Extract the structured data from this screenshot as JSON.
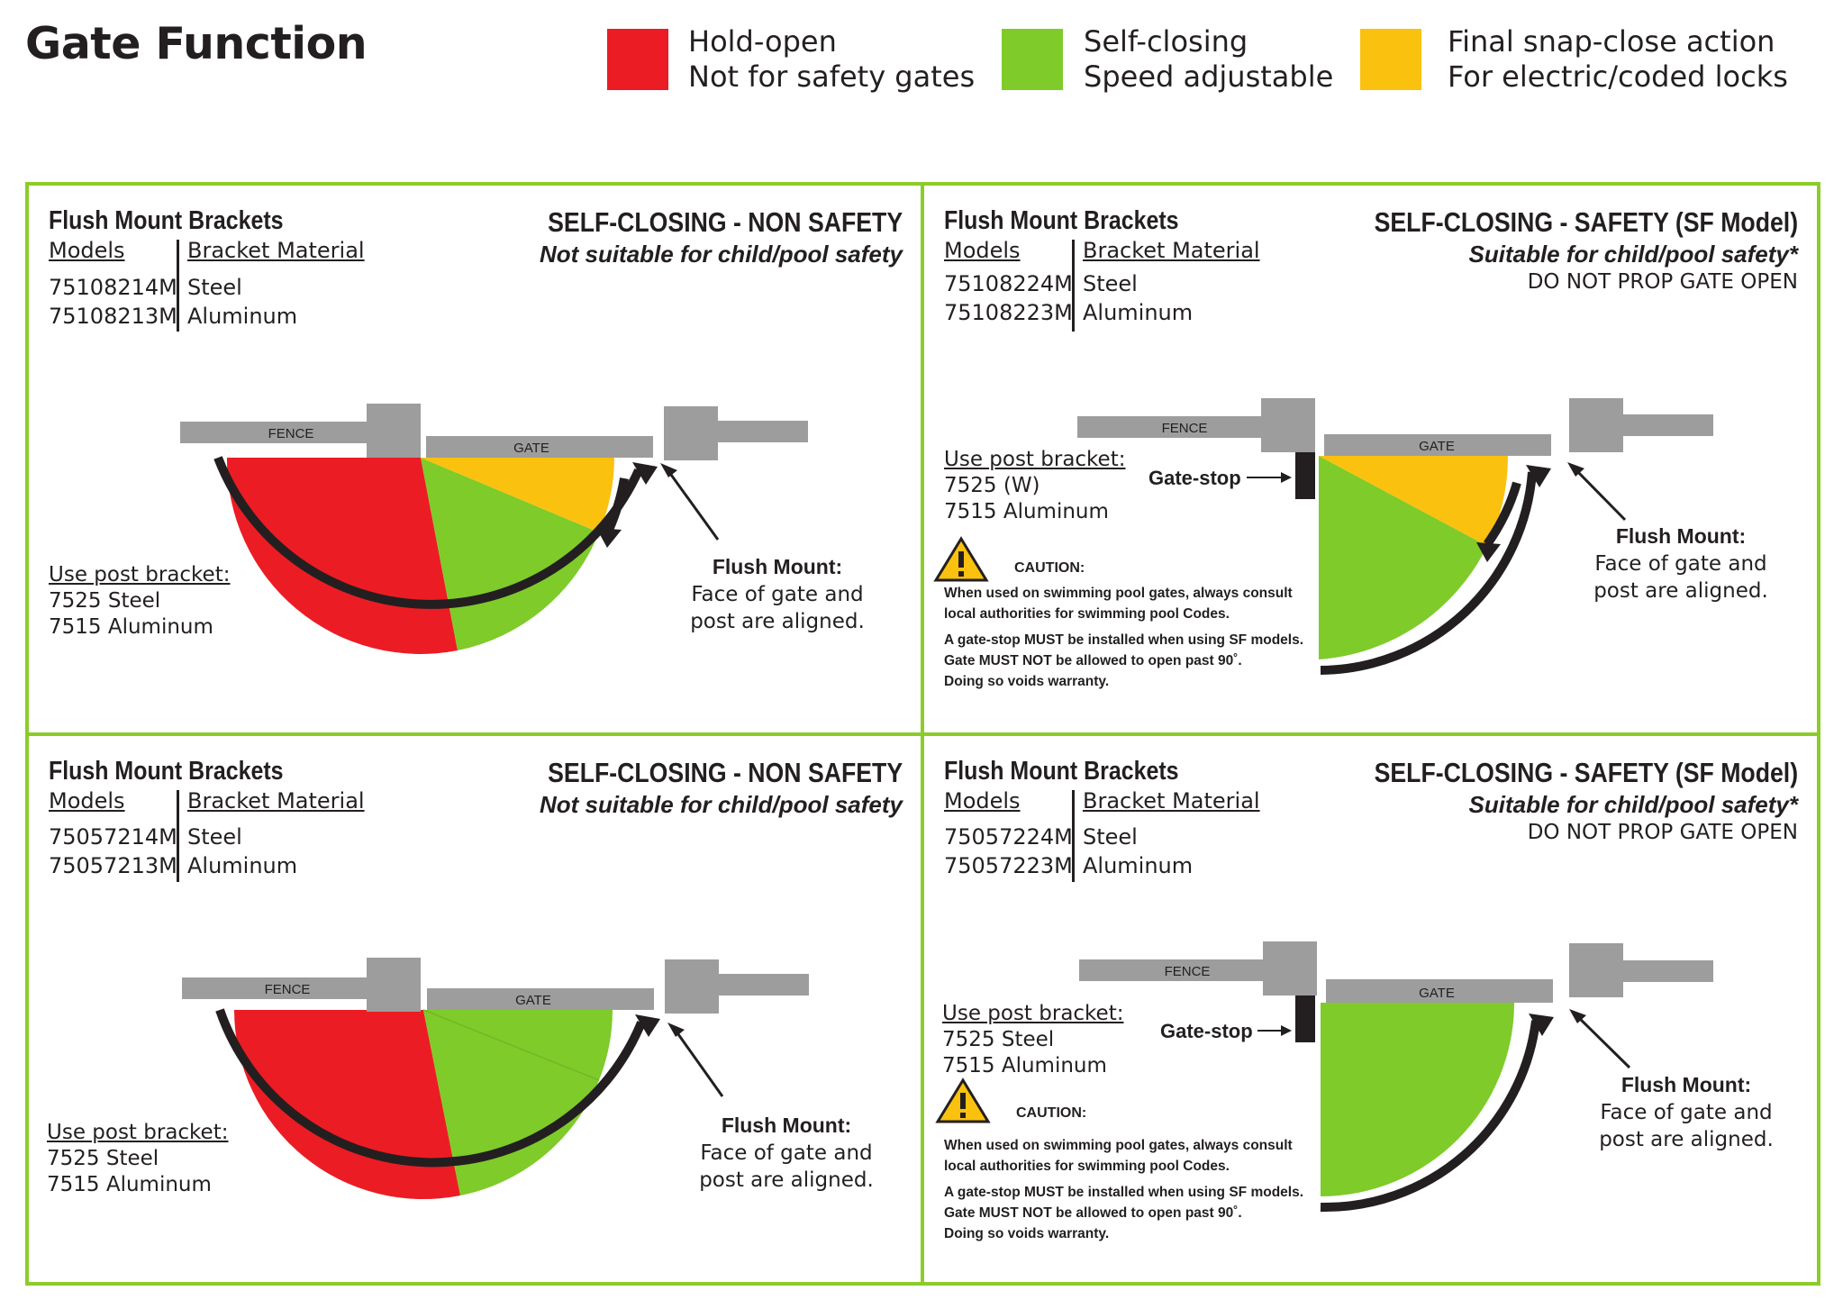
{
  "page_title": "Gate Function",
  "legend": [
    {
      "color": "#ec1c24",
      "line1": "Hold-open",
      "line2": "Not for safety gates"
    },
    {
      "color": "#7ecb2a",
      "line1": "Self-closing",
      "line2": "Speed adjustable"
    },
    {
      "color": "#fbc10f",
      "line1": "Final snap-close action",
      "line2": "For electric/coded locks"
    }
  ],
  "colors": {
    "frame": "#8ccc2a",
    "red": "#ec1c24",
    "green": "#7ecb2a",
    "yellow": "#fbc10f",
    "gray": "#9d9d9d",
    "black": "#231f20"
  },
  "panels": [
    {
      "heading": "Flush Mount Brackets",
      "type_title": "SELF-CLOSING - NON SAFETY",
      "type_subtitle": "Not suitable for child/pool safety",
      "note": "",
      "col_models": "Models",
      "col_material": "Bracket Material",
      "rows": [
        {
          "model": "75108214M",
          "material": "Steel"
        },
        {
          "model": "75108213M",
          "material": "Aluminum"
        }
      ],
      "post_bracket_label": "Use post bracket:",
      "post_bracket_1": "7525 Steel",
      "post_bracket_2": "7515 Aluminum",
      "fence_label": "FENCE",
      "gate_label": "GATE",
      "flush_title": "Flush Mount:",
      "flush_line1": "Face of gate and",
      "flush_line2": "post are aligned."
    },
    {
      "heading": "Flush Mount Brackets",
      "type_title": "SELF-CLOSING - SAFETY (SF Model)",
      "type_subtitle": "Suitable for child/pool safety*",
      "note": "DO NOT PROP GATE OPEN",
      "col_models": "Models",
      "col_material": "Bracket Material",
      "rows": [
        {
          "model": "75108224M",
          "material": "Steel"
        },
        {
          "model": "75108223M",
          "material": "Aluminum"
        }
      ],
      "post_bracket_label": "Use post bracket:",
      "post_bracket_1": "7525 (W)",
      "post_bracket_2": "7515 Aluminum",
      "fence_label": "FENCE",
      "gate_label": "GATE",
      "gate_stop_label": "Gate-stop",
      "caution_title": "CAUTION:",
      "caution_1": "When used on swimming pool gates, always consult",
      "caution_2": "local authorities for swimming pool Codes.",
      "caution_3": "A gate-stop MUST be installed when using SF models.",
      "caution_4": "Gate MUST NOT be allowed to open past 90˚.",
      "caution_5": "Doing so voids warranty.",
      "flush_title": "Flush Mount:",
      "flush_line1": "Face of gate and",
      "flush_line2": "post are aligned."
    },
    {
      "heading": "Flush Mount Brackets",
      "type_title": "SELF-CLOSING - NON SAFETY",
      "type_subtitle": "Not suitable for child/pool safety",
      "note": "",
      "col_models": "Models",
      "col_material": "Bracket Material",
      "rows": [
        {
          "model": "75057214M",
          "material": "Steel"
        },
        {
          "model": "75057213M",
          "material": "Aluminum"
        }
      ],
      "post_bracket_label": "Use post bracket:",
      "post_bracket_1": "7525 Steel",
      "post_bracket_2": "7515 Aluminum",
      "fence_label": "FENCE",
      "gate_label": "GATE",
      "flush_title": "Flush Mount:",
      "flush_line1": "Face of gate and",
      "flush_line2": "post are aligned."
    },
    {
      "heading": "Flush Mount Brackets",
      "type_title": "SELF-CLOSING - SAFETY (SF Model)",
      "type_subtitle": "Suitable for child/pool safety*",
      "note": "DO NOT PROP GATE OPEN",
      "col_models": "Models",
      "col_material": "Bracket Material",
      "rows": [
        {
          "model": "75057224M",
          "material": "Steel"
        },
        {
          "model": "75057223M",
          "material": "Aluminum"
        }
      ],
      "post_bracket_label": "Use post bracket:",
      "post_bracket_1": "7525 Steel",
      "post_bracket_2": "7515 Aluminum",
      "fence_label": "FENCE",
      "gate_label": "GATE",
      "gate_stop_label": "Gate-stop",
      "caution_title": "CAUTION:",
      "caution_1": "When used on swimming pool gates, always consult",
      "caution_2": "local authorities for swimming pool Codes.",
      "caution_3": "A gate-stop MUST be installed when using SF models.",
      "caution_4": "Gate MUST NOT be allowed to open past 90˚.",
      "caution_5": "Doing so voids warranty.",
      "flush_title": "Flush Mount:",
      "flush_line1": "Face of gate and",
      "flush_line2": "post are aligned."
    }
  ]
}
